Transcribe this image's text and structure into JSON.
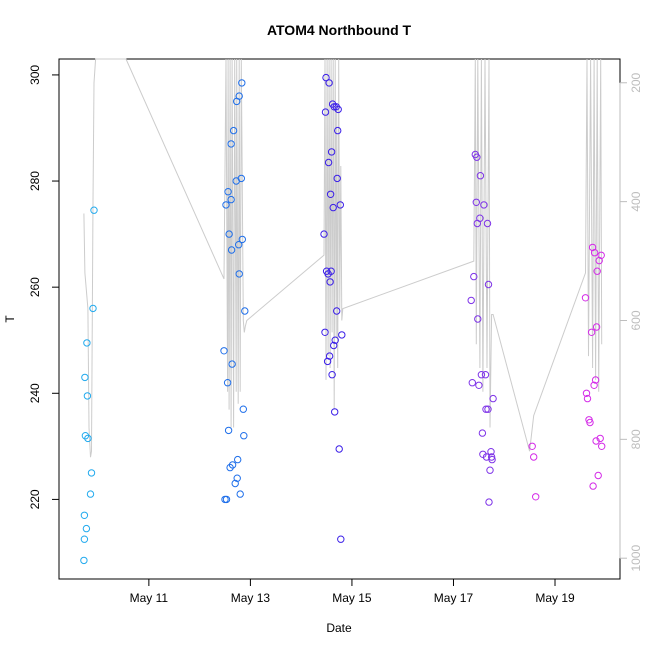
{
  "chart_data": {
    "type": "scatter",
    "title": "ATOM4 Northbound T",
    "xlabel": "Date",
    "ylabel": "T",
    "x_ticks": [
      "May 11",
      "May 13",
      "May 15",
      "May 17",
      "May 19"
    ],
    "x_tick_values": [
      11,
      13,
      15,
      17,
      19
    ],
    "xlim": [
      9.23,
      20.28
    ],
    "ylim": [
      205,
      303
    ],
    "y_ticks": [
      220,
      240,
      260,
      280,
      300
    ],
    "y2_label": "",
    "y2lim": [
      1035,
      160
    ],
    "y2_ticks": [
      200,
      400,
      600,
      800,
      1000
    ],
    "grid": false,
    "legend": "none",
    "colors": {
      "series_start": "#1EA7E8",
      "series_mid": "#2A2AE8",
      "series_end": "#E82AD6",
      "line": "#cccccc",
      "right_axis": "#bdbdbd"
    },
    "series": [
      {
        "color": "#22AAEE",
        "points": [
          [
            9.72,
            208.5
          ],
          [
            9.73,
            212.5
          ],
          [
            9.73,
            217.0
          ],
          [
            9.74,
            243.0
          ],
          [
            9.75,
            232.0
          ],
          [
            9.77,
            214.5
          ],
          [
            9.78,
            249.5
          ],
          [
            9.79,
            239.5
          ],
          [
            9.8,
            231.5
          ],
          [
            9.85,
            221.0
          ],
          [
            9.87,
            225.0
          ],
          [
            9.9,
            256.0
          ],
          [
            9.92,
            274.5
          ]
        ]
      },
      {
        "color": "#1F6FEA",
        "points": [
          [
            12.48,
            248.0
          ],
          [
            12.5,
            220.0
          ],
          [
            12.52,
            275.5
          ],
          [
            12.53,
            220.0
          ],
          [
            12.55,
            242.0
          ],
          [
            12.56,
            278.0
          ],
          [
            12.57,
            233.0
          ],
          [
            12.58,
            270.0
          ],
          [
            12.6,
            226.0
          ],
          [
            12.62,
            276.5
          ],
          [
            12.62,
            287.0
          ],
          [
            12.63,
            267.0
          ],
          [
            12.64,
            245.5
          ],
          [
            12.65,
            226.5
          ],
          [
            12.67,
            289.5
          ],
          [
            12.7,
            223.0
          ],
          [
            12.72,
            280.0
          ],
          [
            12.73,
            295.0
          ],
          [
            12.74,
            224.0
          ],
          [
            12.75,
            227.5
          ],
          [
            12.77,
            268.0
          ],
          [
            12.78,
            296.0
          ],
          [
            12.78,
            262.5
          ],
          [
            12.8,
            221.0
          ],
          [
            12.82,
            280.5
          ],
          [
            12.83,
            298.5
          ],
          [
            12.84,
            269.0
          ],
          [
            12.86,
            237.0
          ],
          [
            12.87,
            232.0
          ],
          [
            12.89,
            255.5
          ]
        ]
      },
      {
        "color": "#3B1FE8",
        "points": [
          [
            14.45,
            270.0
          ],
          [
            14.47,
            251.5
          ],
          [
            14.48,
            293.0
          ],
          [
            14.49,
            299.5
          ],
          [
            14.5,
            263.0
          ],
          [
            14.52,
            246.0
          ],
          [
            14.53,
            262.5
          ],
          [
            14.54,
            283.5
          ],
          [
            14.55,
            298.5
          ],
          [
            14.56,
            247.0
          ],
          [
            14.57,
            261.0
          ],
          [
            14.58,
            277.5
          ],
          [
            14.59,
            263.0
          ],
          [
            14.6,
            285.5
          ],
          [
            14.61,
            243.5
          ],
          [
            14.62,
            294.5
          ],
          [
            14.63,
            275.0
          ],
          [
            14.64,
            249.0
          ],
          [
            14.65,
            294.0
          ],
          [
            14.66,
            236.5
          ],
          [
            14.67,
            250.0
          ],
          [
            14.69,
            294.0
          ],
          [
            14.7,
            255.5
          ],
          [
            14.71,
            280.5
          ],
          [
            14.72,
            289.5
          ],
          [
            14.73,
            293.5
          ],
          [
            14.75,
            229.5
          ],
          [
            14.77,
            275.5
          ],
          [
            14.78,
            212.5
          ],
          [
            14.8,
            251.0
          ]
        ]
      },
      {
        "color": "#7E33E8",
        "points": [
          [
            17.35,
            257.5
          ],
          [
            17.37,
            242.0
          ],
          [
            17.4,
            262.0
          ],
          [
            17.43,
            285.0
          ],
          [
            17.45,
            276.0
          ],
          [
            17.46,
            284.5
          ],
          [
            17.47,
            272.0
          ],
          [
            17.48,
            254.0
          ],
          [
            17.5,
            241.5
          ],
          [
            17.52,
            273.0
          ],
          [
            17.53,
            281.0
          ],
          [
            17.55,
            243.5
          ],
          [
            17.57,
            232.5
          ],
          [
            17.58,
            228.5
          ],
          [
            17.6,
            275.5
          ],
          [
            17.63,
            243.5
          ],
          [
            17.64,
            237.0
          ],
          [
            17.65,
            228.0
          ],
          [
            17.67,
            272.0
          ],
          [
            17.68,
            237.0
          ],
          [
            17.69,
            260.5
          ],
          [
            17.7,
            219.5
          ],
          [
            17.72,
            225.5
          ],
          [
            17.74,
            229.0
          ],
          [
            17.75,
            228.0
          ],
          [
            17.76,
            227.5
          ],
          [
            17.78,
            239.0
          ]
        ]
      },
      {
        "color": "#D42BE8",
        "points": [
          [
            18.55,
            230.0
          ],
          [
            18.58,
            228.0
          ],
          [
            18.62,
            220.5
          ],
          [
            19.6,
            258.0
          ],
          [
            19.62,
            240.0
          ],
          [
            19.64,
            239.0
          ],
          [
            19.67,
            235.0
          ],
          [
            19.69,
            234.5
          ],
          [
            19.72,
            251.5
          ],
          [
            19.74,
            267.5
          ],
          [
            19.75,
            222.5
          ],
          [
            19.77,
            241.5
          ],
          [
            19.78,
            266.5
          ],
          [
            19.8,
            242.5
          ],
          [
            19.81,
            231.0
          ],
          [
            19.82,
            252.5
          ],
          [
            19.83,
            263.0
          ],
          [
            19.85,
            224.5
          ],
          [
            19.87,
            265.0
          ],
          [
            19.89,
            231.5
          ],
          [
            19.91,
            266.0
          ],
          [
            19.92,
            230.0
          ]
        ]
      }
    ],
    "line_y2_points": [
      [
        9.72,
        420
      ],
      [
        9.74,
        520
      ],
      [
        9.78,
        560
      ],
      [
        9.8,
        580
      ],
      [
        9.82,
        780
      ],
      [
        9.85,
        830
      ],
      [
        9.87,
        820
      ],
      [
        9.9,
        400
      ],
      [
        9.92,
        200
      ],
      [
        9.95,
        160
      ],
      [
        10.55,
        160
      ],
      [
        12.48,
        530
      ],
      [
        12.52,
        160
      ],
      [
        12.55,
        720
      ],
      [
        12.56,
        160
      ],
      [
        12.58,
        750
      ],
      [
        12.6,
        160
      ],
      [
        12.62,
        780
      ],
      [
        12.64,
        160
      ],
      [
        12.67,
        780
      ],
      [
        12.69,
        160
      ],
      [
        12.72,
        720
      ],
      [
        12.73,
        160
      ],
      [
        12.76,
        740
      ],
      [
        12.78,
        160
      ],
      [
        12.8,
        720
      ],
      [
        12.82,
        160
      ],
      [
        12.86,
        600
      ],
      [
        12.88,
        620
      ],
      [
        12.9,
        610
      ],
      [
        12.93,
        600
      ],
      [
        14.45,
        490
      ],
      [
        14.47,
        160
      ],
      [
        14.49,
        700
      ],
      [
        14.51,
        160
      ],
      [
        14.53,
        660
      ],
      [
        14.55,
        160
      ],
      [
        14.57,
        680
      ],
      [
        14.59,
        160
      ],
      [
        14.61,
        620
      ],
      [
        14.63,
        160
      ],
      [
        14.65,
        750
      ],
      [
        14.67,
        160
      ],
      [
        14.69,
        630
      ],
      [
        14.7,
        240
      ],
      [
        14.72,
        680
      ],
      [
        14.74,
        160
      ],
      [
        14.76,
        580
      ],
      [
        14.78,
        340
      ],
      [
        14.8,
        600
      ],
      [
        14.82,
        580
      ],
      [
        17.4,
        500
      ],
      [
        17.43,
        160
      ],
      [
        17.45,
        640
      ],
      [
        17.48,
        160
      ],
      [
        17.52,
        680
      ],
      [
        17.55,
        160
      ],
      [
        17.58,
        720
      ],
      [
        17.62,
        160
      ],
      [
        17.66,
        680
      ],
      [
        17.7,
        160
      ],
      [
        17.72,
        780
      ],
      [
        17.75,
        590
      ],
      [
        17.78,
        590
      ],
      [
        18.5,
        820
      ],
      [
        18.58,
        760
      ],
      [
        19.6,
        520
      ],
      [
        19.63,
        160
      ],
      [
        19.66,
        660
      ],
      [
        19.7,
        160
      ],
      [
        19.74,
        680
      ],
      [
        19.77,
        160
      ],
      [
        19.8,
        700
      ],
      [
        19.83,
        160
      ],
      [
        19.86,
        720
      ],
      [
        19.9,
        160
      ],
      [
        19.92,
        640
      ]
    ]
  }
}
